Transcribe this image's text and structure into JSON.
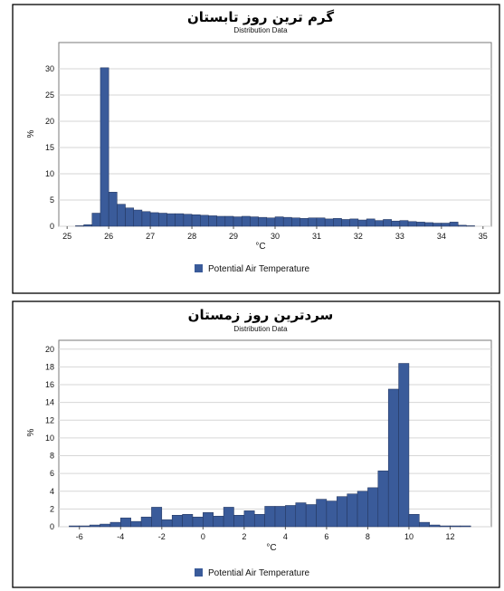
{
  "chart_data": [
    {
      "type": "bar",
      "title": "گرم ترین روز تابستان",
      "subtitle": "Distribution Data",
      "xlabel": "°C",
      "ylabel": "%",
      "xlim": [
        24.8,
        35.2
      ],
      "ylim": [
        0,
        35
      ],
      "bin_width": 0.2,
      "x_ticks": [
        25,
        26,
        27,
        28,
        29,
        30,
        31,
        32,
        33,
        34,
        35
      ],
      "y_ticks": [
        0,
        5,
        10,
        15,
        20,
        25,
        30
      ],
      "grid": true,
      "legend_position": "bottom-center",
      "series": [
        {
          "name": "Potential Air Temperature",
          "color": "#3a5b9a",
          "x": [
            25.3,
            25.5,
            25.7,
            25.9,
            26.1,
            26.3,
            26.5,
            26.7,
            26.9,
            27.1,
            27.3,
            27.5,
            27.7,
            27.9,
            28.1,
            28.3,
            28.5,
            28.7,
            28.9,
            29.1,
            29.3,
            29.5,
            29.7,
            29.9,
            30.1,
            30.3,
            30.5,
            30.7,
            30.9,
            31.1,
            31.3,
            31.5,
            31.7,
            31.9,
            32.1,
            32.3,
            32.5,
            32.7,
            32.9,
            33.1,
            33.3,
            33.5,
            33.7,
            33.9,
            34.1,
            34.3,
            34.5,
            34.7
          ],
          "values": [
            0.1,
            0.3,
            2.5,
            30.2,
            6.5,
            4.2,
            3.5,
            3.1,
            2.8,
            2.6,
            2.5,
            2.4,
            2.4,
            2.3,
            2.2,
            2.1,
            2.0,
            1.9,
            1.9,
            1.8,
            1.9,
            1.8,
            1.7,
            1.6,
            1.8,
            1.7,
            1.6,
            1.5,
            1.6,
            1.6,
            1.4,
            1.5,
            1.3,
            1.4,
            1.2,
            1.4,
            1.1,
            1.3,
            1.0,
            1.1,
            0.9,
            0.8,
            0.7,
            0.6,
            0.6,
            0.8,
            0.2,
            0.1
          ]
        }
      ]
    },
    {
      "type": "bar",
      "title": "سردترین روز زمستان",
      "subtitle": "Distribution Data",
      "xlabel": "°C",
      "ylabel": "%",
      "xlim": [
        -7,
        14
      ],
      "ylim": [
        0,
        21
      ],
      "bin_width": 0.5,
      "x_ticks": [
        -6,
        -4,
        -2,
        0,
        2,
        4,
        6,
        8,
        10,
        12
      ],
      "y_ticks": [
        0,
        2,
        4,
        6,
        8,
        10,
        12,
        14,
        16,
        18,
        20
      ],
      "grid": true,
      "legend_position": "bottom-center",
      "series": [
        {
          "name": "Potential Air Temperature",
          "color": "#3a5b9a",
          "x": [
            -6.25,
            -5.75,
            -5.25,
            -4.75,
            -4.25,
            -3.75,
            -3.25,
            -2.75,
            -2.25,
            -1.75,
            -1.25,
            -0.75,
            -0.25,
            0.25,
            0.75,
            1.25,
            1.75,
            2.25,
            2.75,
            3.25,
            3.75,
            4.25,
            4.75,
            5.25,
            5.75,
            6.25,
            6.75,
            7.25,
            7.75,
            8.25,
            8.75,
            9.25,
            9.75,
            10.25,
            10.75,
            11.25,
            11.75,
            12.25,
            12.75
          ],
          "values": [
            0.1,
            0.1,
            0.2,
            0.3,
            0.5,
            1.0,
            0.6,
            1.1,
            2.2,
            0.8,
            1.3,
            1.4,
            1.1,
            1.6,
            1.2,
            2.2,
            1.3,
            1.8,
            1.4,
            2.3,
            2.3,
            2.4,
            2.7,
            2.5,
            3.1,
            2.9,
            3.4,
            3.7,
            4.0,
            4.4,
            6.3,
            15.5,
            18.4,
            1.4,
            0.5,
            0.2,
            0.1,
            0.1,
            0.1
          ]
        }
      ]
    }
  ]
}
